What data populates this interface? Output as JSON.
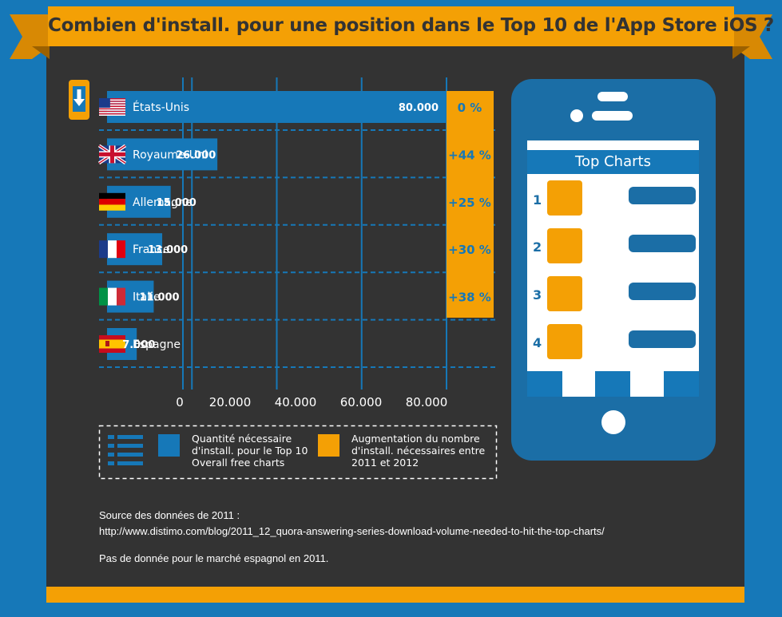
{
  "title": "Combien d'install. pour une position dans le Top 10 de l'App Store iOS ?",
  "colors": {
    "background": "#1678b8",
    "panel": "#333333",
    "accent": "#f4a005",
    "bar": "#1678b8",
    "phone": "#1b6ea6"
  },
  "chart_data": {
    "type": "bar",
    "orientation": "horizontal",
    "categories": [
      "États-Unis",
      "Royaume-Uni",
      "Allemagne",
      "France",
      "Italie",
      "Espagne"
    ],
    "flags": [
      "us-flag-icon",
      "uk-flag-icon",
      "germany-flag-icon",
      "france-flag-icon",
      "italy-flag-icon",
      "spain-flag-icon"
    ],
    "values": [
      80000,
      26000,
      15000,
      13000,
      11000,
      7000
    ],
    "value_labels": [
      "80.000",
      "26.000",
      "15.000",
      "13.000",
      "11.000",
      "7.000"
    ],
    "increase_labels": [
      "0 %",
      "+44 %",
      "+25 %",
      "+30 %",
      "+38 %",
      ""
    ],
    "x_ticks": [
      0,
      20000,
      40000,
      60000,
      80000
    ],
    "x_tick_labels": [
      "0",
      "20.000",
      "40.000",
      "60.000",
      "80.000"
    ],
    "xlim": [
      0,
      80000
    ],
    "grid": true
  },
  "legend": {
    "series_1": "Quantité nécessaire d'install. pour le Top 10 Overall free charts",
    "series_2": "Augmentation du nombre d'install. nécessaires entre 2011 et 2012"
  },
  "source": {
    "line1": "Source des données de 2011 :",
    "line2": "http://www.distimo.com/blog/2011_12_quora-answering-series-download-volume-needed-to-hit-the-top-charts/",
    "note": "Pas de donnée pour le marché espagnol en 2011."
  },
  "phone": {
    "screen_title": "Top Charts",
    "ranks": [
      "1",
      "2",
      "3",
      "4"
    ]
  }
}
